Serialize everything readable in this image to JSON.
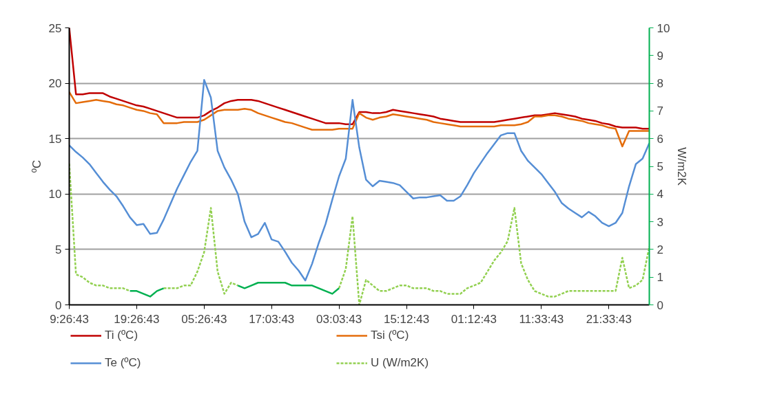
{
  "chart_data": {
    "type": "line",
    "ylabel": "ºC",
    "y2label": "W/m2K",
    "categories": [
      "9:26:43",
      null,
      null,
      null,
      null,
      null,
      null,
      null,
      null,
      null,
      "19:26:43",
      null,
      null,
      null,
      null,
      null,
      null,
      null,
      null,
      null,
      "05:26:43",
      null,
      null,
      null,
      null,
      null,
      null,
      null,
      null,
      null,
      "17:03:43",
      null,
      null,
      null,
      null,
      null,
      null,
      null,
      null,
      null,
      "03:03:43",
      null,
      null,
      null,
      null,
      null,
      null,
      null,
      null,
      null,
      "15:12:43",
      null,
      null,
      null,
      null,
      null,
      null,
      null,
      null,
      null,
      "01:12:43",
      null,
      null,
      null,
      null,
      null,
      null,
      null,
      null,
      null,
      "11:33:43",
      null,
      null,
      null,
      null,
      null,
      null,
      null,
      null,
      null,
      "21:33:43",
      null,
      null,
      null,
      null,
      null,
      null
    ],
    "ylim": [
      0,
      25
    ],
    "yticks": [
      0,
      5,
      10,
      15,
      20,
      25
    ],
    "y2lim": [
      0,
      10
    ],
    "y2ticks": [
      0,
      1,
      2,
      3,
      4,
      5,
      6,
      7,
      8,
      9,
      10
    ],
    "grid": "y",
    "legend": "bottom",
    "series": [
      {
        "name": "Ti (ºC)",
        "color": "#c00000",
        "line_style": "solid",
        "values": [
          25,
          19.0,
          19.0,
          19.1,
          19.1,
          19.1,
          18.8,
          18.6,
          18.4,
          18.2,
          18.0,
          17.9,
          17.7,
          17.5,
          17.3,
          17.1,
          16.9,
          16.9,
          16.9,
          16.9,
          17.1,
          17.5,
          17.8,
          18.2,
          18.4,
          18.5,
          18.5,
          18.5,
          18.4,
          18.2,
          18.0,
          17.8,
          17.6,
          17.4,
          17.2,
          17.0,
          16.8,
          16.6,
          16.4,
          16.4,
          16.4,
          16.3,
          16.3,
          17.4,
          17.4,
          17.3,
          17.3,
          17.4,
          17.6,
          17.5,
          17.4,
          17.3,
          17.2,
          17.1,
          17.0,
          16.8,
          16.7,
          16.6,
          16.5,
          16.5,
          16.5,
          16.5,
          16.5,
          16.5,
          16.6,
          16.7,
          16.8,
          16.9,
          17.0,
          17.1,
          17.1,
          17.2,
          17.3,
          17.2,
          17.1,
          17.0,
          16.8,
          16.7,
          16.6,
          16.4,
          16.3,
          16.1,
          16.0,
          16.0,
          16.0,
          15.9,
          15.9
        ]
      },
      {
        "name": "Tsi (ºC)",
        "color": "#e46c0a",
        "line_style": "solid",
        "values": [
          19.2,
          18.2,
          18.3,
          18.4,
          18.5,
          18.4,
          18.3,
          18.1,
          18.0,
          17.8,
          17.6,
          17.5,
          17.3,
          17.2,
          16.4,
          16.4,
          16.4,
          16.5,
          16.5,
          16.5,
          16.7,
          17.1,
          17.5,
          17.6,
          17.6,
          17.6,
          17.7,
          17.6,
          17.3,
          17.1,
          16.9,
          16.7,
          16.5,
          16.4,
          16.2,
          16.0,
          15.8,
          15.8,
          15.8,
          15.8,
          15.9,
          15.9,
          15.9,
          17.3,
          16.9,
          16.7,
          16.9,
          17.0,
          17.2,
          17.1,
          17.0,
          16.9,
          16.8,
          16.7,
          16.5,
          16.4,
          16.3,
          16.2,
          16.1,
          16.1,
          16.1,
          16.1,
          16.1,
          16.1,
          16.2,
          16.2,
          16.2,
          16.3,
          16.5,
          17.0,
          17.0,
          17.1,
          17.1,
          17.0,
          16.8,
          16.7,
          16.6,
          16.4,
          16.3,
          16.2,
          16.0,
          15.9,
          14.3,
          15.7,
          15.7,
          15.7,
          15.7
        ]
      },
      {
        "name": "Te (ºC)",
        "color": "#558ed5",
        "line_style": "solid",
        "values": [
          14.4,
          13.8,
          13.3,
          12.7,
          11.9,
          11.1,
          10.4,
          9.8,
          8.9,
          7.9,
          7.2,
          7.3,
          6.4,
          6.5,
          7.7,
          9.1,
          10.5,
          11.7,
          12.9,
          13.9,
          20.3,
          18.7,
          13.9,
          12.4,
          11.3,
          10.0,
          7.5,
          6.1,
          6.4,
          7.4,
          5.9,
          5.7,
          4.8,
          3.8,
          3.1,
          2.2,
          3.7,
          5.6,
          7.3,
          9.5,
          11.6,
          13.2,
          18.5,
          14.2,
          11.3,
          10.7,
          11.2,
          11.1,
          11.0,
          10.8,
          10.2,
          9.6,
          9.7,
          9.7,
          9.8,
          9.9,
          9.4,
          9.4,
          9.8,
          10.8,
          11.9,
          12.8,
          13.7,
          14.5,
          15.3,
          15.5,
          15.5,
          13.9,
          13.0,
          12.4,
          11.8,
          11.0,
          10.2,
          9.2,
          8.7,
          8.3,
          7.9,
          8.4,
          8.0,
          7.4,
          7.1,
          7.4,
          8.3,
          10.7,
          12.7,
          13.2,
          14.6
        ]
      },
      {
        "name": "U (W/m2K)",
        "color": "#92d050",
        "line_style": "dashed",
        "axis": "y2",
        "values": [
          5.1,
          1.1,
          1.0,
          0.8,
          0.7,
          0.7,
          0.6,
          0.6,
          0.6,
          0.5,
          null,
          null,
          null,
          null,
          0.6,
          0.6,
          0.6,
          0.7,
          0.7,
          1.2,
          1.9,
          3.5,
          1.2,
          0.4,
          0.8,
          0.7,
          null,
          null,
          null,
          null,
          null,
          null,
          null,
          null,
          null,
          null,
          null,
          null,
          null,
          null,
          0.6,
          1.3,
          3.2,
          0.0,
          0.9,
          0.7,
          0.5,
          0.5,
          0.6,
          0.7,
          0.7,
          0.6,
          0.6,
          0.6,
          0.5,
          0.5,
          0.4,
          0.4,
          0.4,
          0.6,
          0.7,
          0.8,
          1.2,
          1.6,
          1.9,
          2.3,
          3.5,
          1.5,
          0.9,
          0.5,
          0.4,
          0.3,
          0.3,
          0.4,
          0.5,
          0.5,
          0.5,
          0.5,
          0.5,
          0.5,
          0.5,
          0.5,
          1.7,
          0.6,
          0.7,
          0.9,
          2.1
        ]
      },
      {
        "color": "#00b050",
        "line_style": "solid",
        "axis": "y2",
        "values": [
          null,
          null,
          null,
          null,
          null,
          null,
          null,
          null,
          null,
          0.5,
          0.5,
          0.4,
          0.3,
          0.5,
          0.6,
          null,
          null,
          null,
          null,
          null,
          null,
          null,
          null,
          null,
          null,
          0.7,
          0.6,
          0.7,
          0.8,
          0.8,
          0.8,
          0.8,
          0.8,
          0.7,
          0.7,
          0.7,
          0.7,
          0.6,
          0.5,
          0.4,
          0.6,
          null,
          null,
          null,
          null,
          null,
          null,
          null,
          null,
          null,
          null,
          null,
          null,
          null,
          null,
          null,
          null,
          null,
          null,
          null,
          null,
          null,
          null,
          null,
          null,
          null,
          null,
          null,
          null,
          null,
          null,
          null,
          null,
          null,
          null,
          null,
          null,
          null,
          null,
          null,
          null,
          null,
          null,
          null,
          null,
          null,
          null
        ]
      }
    ]
  }
}
